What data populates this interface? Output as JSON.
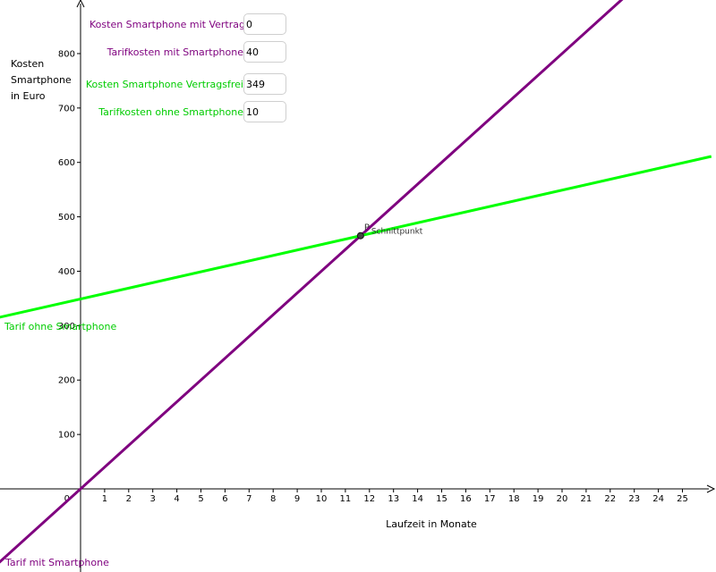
{
  "inputs": [
    {
      "label": "Kosten Smartphone mit Vertrag",
      "value": "0",
      "color": "#7f007f"
    },
    {
      "label": "Tarifkosten mit Smartphone",
      "value": "40",
      "color": "#7f007f"
    },
    {
      "label": "Kosten Smartphone Vertragsfrei",
      "value": "349",
      "color": "#00cc00"
    },
    {
      "label": "Tarifkosten ohne Smartphone",
      "value": "10",
      "color": "#00cc00"
    }
  ],
  "chart_data": {
    "type": "line",
    "xlabel": "Laufzeit in Monate",
    "ylabel": [
      "Kosten",
      "Smartphone",
      "in Euro"
    ],
    "x_ticks": [
      "1",
      "2",
      "3",
      "4",
      "5",
      "6",
      "7",
      "8",
      "9",
      "10",
      "11",
      "12",
      "13",
      "14",
      "15",
      "16",
      "17",
      "18",
      "19",
      "20",
      "21",
      "22",
      "23",
      "24",
      "25"
    ],
    "y_ticks": [
      "100",
      "200",
      "300",
      "400",
      "500",
      "600",
      "700",
      "800"
    ],
    "origin_label": "0",
    "xlim": [
      -3.4,
      26.2
    ],
    "ylim": [
      -150,
      900
    ],
    "grid": false,
    "series": [
      {
        "name": "Tarif mit Smartphone",
        "intercept": 0,
        "slope": 40,
        "color": "#7f007f"
      },
      {
        "name": "Tarif ohne Smartphone",
        "intercept": 349,
        "slope": 10,
        "color": "#00ff00"
      }
    ],
    "point": {
      "name": "P",
      "caption": "Schnittpunkt",
      "x": 11.63,
      "y": 465.33
    }
  }
}
